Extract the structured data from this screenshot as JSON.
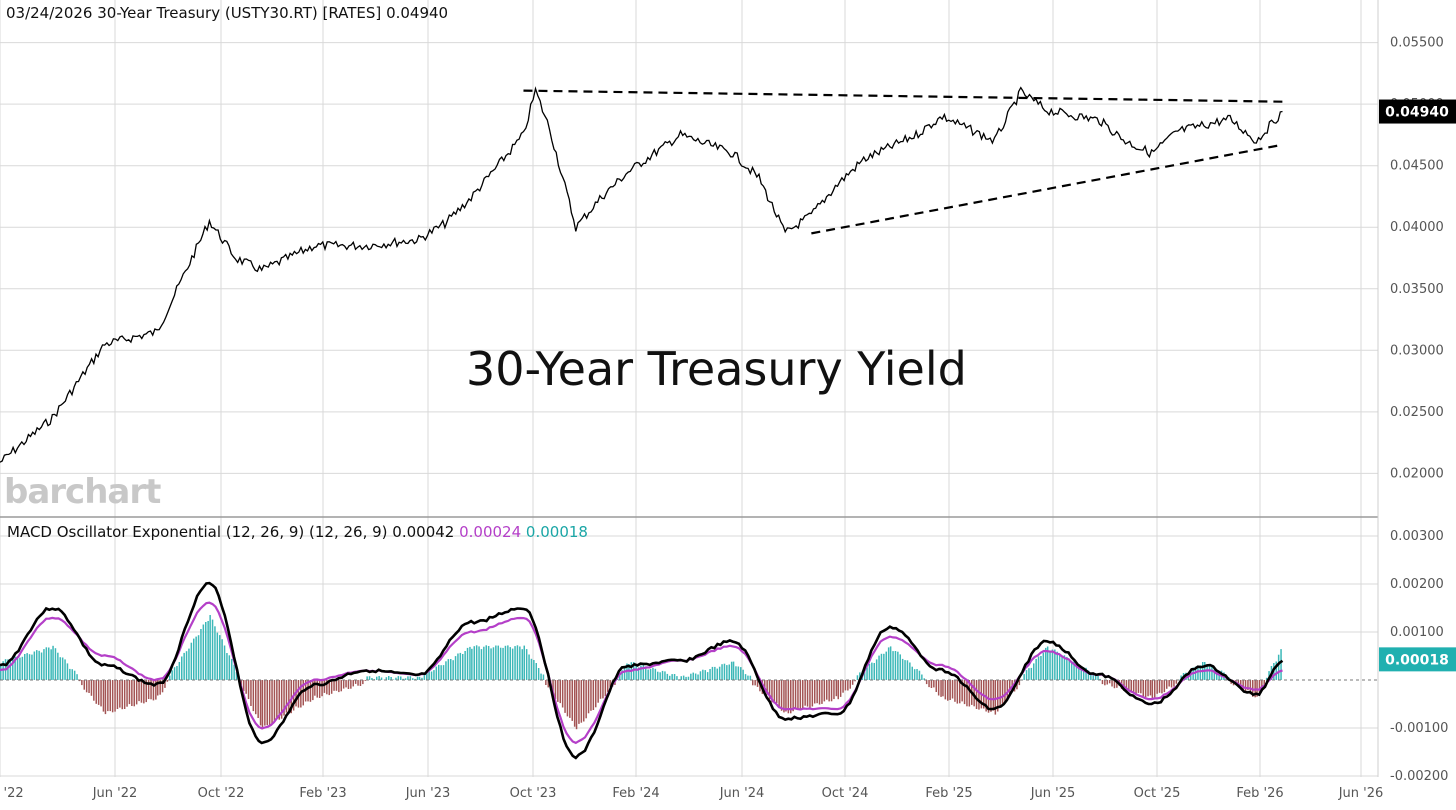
{
  "header": {
    "date": "03/24/2026",
    "symbol_title": "30-Year Treasury (USTY30.RT) [RATES]",
    "last_value": "0.04940"
  },
  "macd_header": {
    "label": "MACD Oscillator Exponential (12, 26, 9)  (12, 26, 9)",
    "macd": "0.00042",
    "signal": "0.00024",
    "histogram": "0.00018"
  },
  "watermark": "barchart",
  "overlay_title": "30-Year Treasury Yield",
  "colors": {
    "price_line": "#000000",
    "macd_line": "#000000",
    "signal_line": "#b43fc8",
    "hist_pos": "#3cb8b8",
    "hist_neg": "#a35454",
    "grid": "#d9d9d9",
    "badge_price": "#000000",
    "badge_hist": "#20b0b0"
  },
  "chart_data": [
    {
      "type": "line",
      "title": "30-Year Treasury Yield",
      "series_name": "30-Year Treasury (USTY30.RT)",
      "x": [
        "Feb '22",
        "Apr '22",
        "Jun '22",
        "Aug '22",
        "Oct '22",
        "Nov '22",
        "Dec '22",
        "Feb '23",
        "Apr '23",
        "Jun '23",
        "Jul '23",
        "Aug '23",
        "Oct '23",
        "Oct '23b",
        "Nov '23",
        "Dec '23",
        "Jan '24",
        "Feb '24",
        "Apr '24",
        "Jun '24",
        "Jul '24",
        "Aug '24",
        "Sep '24",
        "Oct '24",
        "Nov '24",
        "Jan '25",
        "Feb '25",
        "Apr '25",
        "May '25",
        "Jun '25",
        "Aug '25",
        "Sep '25",
        "Oct '25",
        "Nov '25",
        "Jan '26",
        "Feb '26",
        "Mar '26"
      ],
      "values": [
        0.0209,
        0.0245,
        0.0305,
        0.0315,
        0.0405,
        0.0375,
        0.0365,
        0.0385,
        0.0385,
        0.039,
        0.0403,
        0.0424,
        0.0475,
        0.0511,
        0.048,
        0.04,
        0.0425,
        0.0445,
        0.0475,
        0.046,
        0.044,
        0.0395,
        0.041,
        0.0435,
        0.0455,
        0.0475,
        0.049,
        0.047,
        0.051,
        0.0495,
        0.0487,
        0.047,
        0.046,
        0.0478,
        0.0488,
        0.047,
        0.0494
      ],
      "ylim": [
        0.018,
        0.057
      ],
      "y_ticks": [
        "0.05500",
        "0.05000",
        "0.04500",
        "0.04000",
        "0.03500",
        "0.03000",
        "0.02500",
        "0.02000"
      ],
      "x_ticks": [
        "Feb '22",
        "Jun '22",
        "Oct '22",
        "Feb '23",
        "Jun '23",
        "Oct '23",
        "Feb '24",
        "Jun '24",
        "Oct '24",
        "Feb '25",
        "Jun '25",
        "Oct '25",
        "Feb '26",
        "Jun '26"
      ],
      "trendlines": [
        {
          "from": [
            "Oct '23",
            0.0511
          ],
          "to": [
            "Mar '26",
            0.0502
          ],
          "style": "dashed"
        },
        {
          "from": [
            "Sep '24",
            0.0395
          ],
          "to": [
            "Mar '26",
            0.0467
          ],
          "style": "dashed"
        }
      ],
      "last_badge": "0.04940",
      "grid": true
    },
    {
      "type": "line",
      "title": "MACD Oscillator Exponential (12, 26, 9)",
      "x": [
        "Feb '22",
        "Apr '22",
        "Jun '22",
        "Aug '22",
        "Oct '22",
        "Dec '22",
        "Feb '23",
        "Apr '23",
        "Jun '23",
        "Aug '23",
        "Oct '23",
        "Dec '23",
        "Feb '24",
        "Apr '24",
        "Jun '24",
        "Aug '24",
        "Oct '24",
        "Dec '24",
        "Feb '25",
        "Apr '25",
        "Jun '25",
        "Aug '25",
        "Oct '25",
        "Dec '25",
        "Feb '26",
        "Mar '26"
      ],
      "series": [
        {
          "name": "MACD",
          "values": [
            0.0003,
            0.0015,
            0.0003,
            -0.0001,
            0.002,
            -0.0013,
            -0.0001,
            0.0002,
            0.0001,
            0.0012,
            0.0015,
            -0.0016,
            0.0003,
            0.0004,
            0.0008,
            -0.0008,
            -0.0007,
            0.0011,
            0.0002,
            -0.0006,
            0.0008,
            0.0001,
            -0.0005,
            0.0003,
            -0.0003,
            0.0004
          ]
        },
        {
          "name": "Signal",
          "values": [
            0.0002,
            0.0013,
            0.0005,
            0.0,
            0.0016,
            -0.001,
            0.0,
            0.0002,
            0.0001,
            0.001,
            0.0013,
            -0.0013,
            0.0002,
            0.0004,
            0.0007,
            -0.0006,
            -0.0006,
            0.0009,
            0.0003,
            -0.0004,
            0.0006,
            0.0001,
            -0.0004,
            0.0002,
            -0.0002,
            0.0002
          ]
        }
      ],
      "ylim": [
        -0.0022,
        0.0032
      ],
      "y_ticks": [
        "0.00300",
        "0.00200",
        "0.00100",
        "-0.00100",
        "-0.00200"
      ],
      "last_badge": "0.00018"
    }
  ]
}
